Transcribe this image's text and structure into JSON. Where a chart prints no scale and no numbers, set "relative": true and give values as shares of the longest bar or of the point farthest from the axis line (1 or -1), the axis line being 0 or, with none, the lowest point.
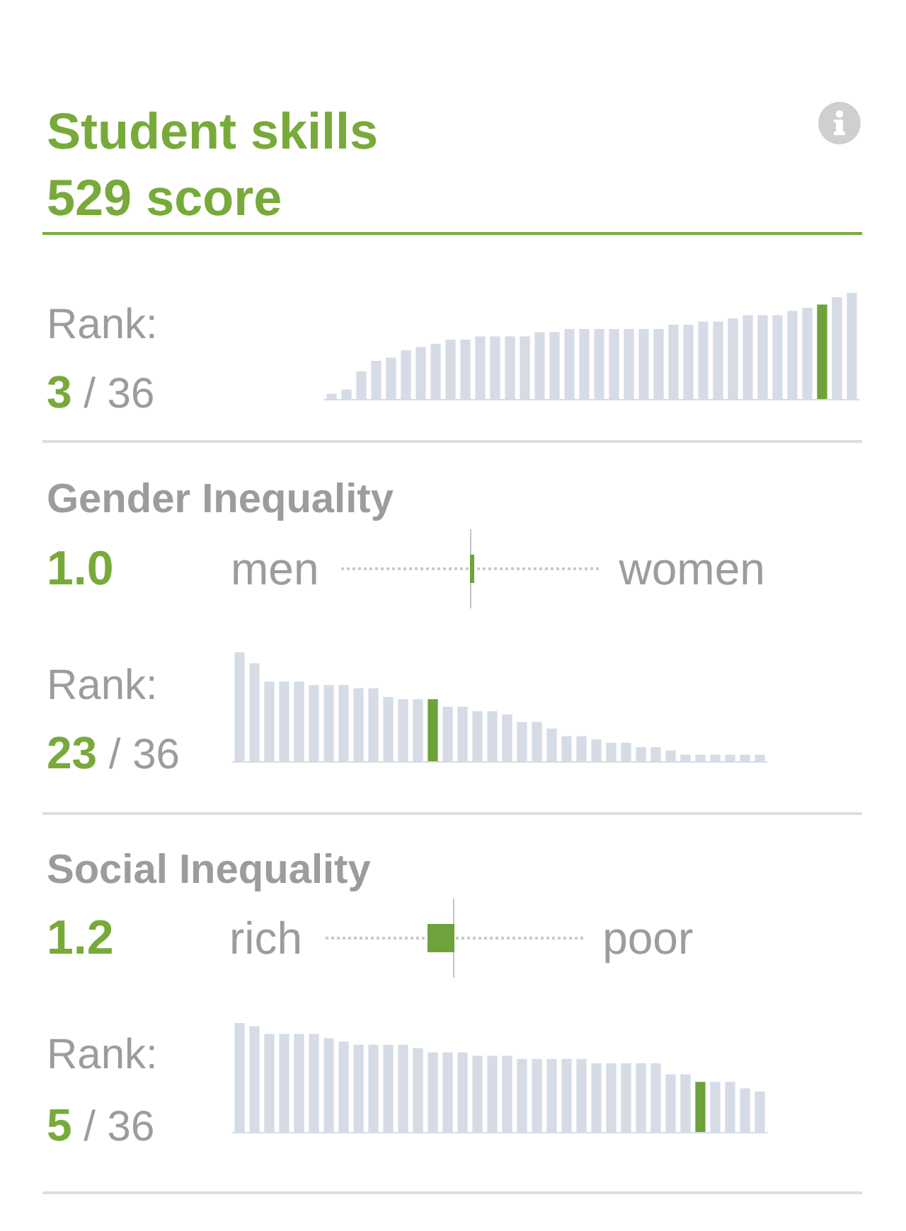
{
  "chart_data": [
    {
      "type": "bar",
      "title": "Student skills",
      "subtitle": "529 score",
      "relative": true,
      "categories": [
        null,
        null,
        null,
        null,
        null,
        null,
        null,
        null,
        null,
        null,
        null,
        null,
        null,
        null,
        null,
        null,
        null,
        null,
        null,
        null,
        null,
        null,
        null,
        null,
        null,
        null,
        null,
        null,
        null,
        null,
        null,
        null,
        null,
        null,
        null,
        null
      ],
      "values": [
        0.05,
        0.09,
        0.26,
        0.36,
        0.39,
        0.46,
        0.49,
        0.52,
        0.56,
        0.56,
        0.59,
        0.59,
        0.59,
        0.59,
        0.63,
        0.63,
        0.66,
        0.66,
        0.66,
        0.66,
        0.66,
        0.66,
        0.66,
        0.7,
        0.7,
        0.73,
        0.73,
        0.76,
        0.79,
        0.79,
        0.79,
        0.83,
        0.86,
        0.89,
        0.96,
        1
      ],
      "colors": [
        "#d6dce5",
        "#d6dce5",
        "#d6dce5",
        "#d6dce5",
        "#d6dce5",
        "#d6dce5",
        "#d6dce5",
        "#d6dce5",
        "#d6dce5",
        "#d6dce5",
        "#d6dce5",
        "#d6dce5",
        "#d6dce5",
        "#d6dce5",
        "#d6dce5",
        "#d6dce5",
        "#d6dce5",
        "#d6dce5",
        "#d6dce5",
        "#d6dce5",
        "#d6dce5",
        "#d6dce5",
        "#d6dce5",
        "#d6dce5",
        "#d6dce5",
        "#d6dce5",
        "#d6dce5",
        "#d6dce5",
        "#d6dce5",
        "#d6dce5",
        "#d6dce5",
        "#d6dce5",
        "#d6dce5",
        "#6ea23a",
        "#d6dce5",
        "#d6dce5"
      ],
      "annotations": [
        "Rank:",
        "3 / 36"
      ]
    },
    {
      "type": "other",
      "title": "Gender Inequality",
      "values": [
        1.0
      ],
      "value_labels": [
        "1.0"
      ],
      "annotations": [
        "men",
        "women"
      ]
    },
    {
      "type": "bar",
      "relative": true,
      "categories": [
        null,
        null,
        null,
        null,
        null,
        null,
        null,
        null,
        null,
        null,
        null,
        null,
        null,
        null,
        null,
        null,
        null,
        null,
        null,
        null,
        null,
        null,
        null,
        null,
        null,
        null,
        null,
        null,
        null,
        null,
        null,
        null,
        null,
        null,
        null,
        null
      ],
      "values": [
        1,
        0.9,
        0.73,
        0.73,
        0.73,
        0.7,
        0.7,
        0.7,
        0.67,
        0.67,
        0.59,
        0.57,
        0.57,
        0.57,
        0.5,
        0.5,
        0.46,
        0.46,
        0.43,
        0.36,
        0.36,
        0.3,
        0.23,
        0.23,
        0.2,
        0.17,
        0.17,
        0.13,
        0.13,
        0.1,
        0.06,
        0.06,
        0.06,
        0.06,
        0.06,
        0.06
      ],
      "colors": [
        "#d6dce5",
        "#d6dce5",
        "#d6dce5",
        "#d6dce5",
        "#d6dce5",
        "#d6dce5",
        "#d6dce5",
        "#d6dce5",
        "#d6dce5",
        "#d6dce5",
        "#d6dce5",
        "#d6dce5",
        "#d6dce5",
        "#6ea23a",
        "#d6dce5",
        "#d6dce5",
        "#d6dce5",
        "#d6dce5",
        "#d6dce5",
        "#d6dce5",
        "#d6dce5",
        "#d6dce5",
        "#d6dce5",
        "#d6dce5",
        "#d6dce5",
        "#d6dce5",
        "#d6dce5",
        "#d6dce5",
        "#d6dce5",
        "#d6dce5",
        "#d6dce5",
        "#d6dce5",
        "#d6dce5",
        "#d6dce5",
        "#d6dce5",
        "#d6dce5"
      ],
      "annotations": [
        "Rank:",
        "23 / 36"
      ]
    },
    {
      "type": "other",
      "title": "Social Inequality",
      "values": [
        1.2
      ],
      "value_labels": [
        "1.2"
      ],
      "annotations": [
        "rich",
        "poor"
      ]
    },
    {
      "type": "bar",
      "relative": true,
      "categories": [
        null,
        null,
        null,
        null,
        null,
        null,
        null,
        null,
        null,
        null,
        null,
        null,
        null,
        null,
        null,
        null,
        null,
        null,
        null,
        null,
        null,
        null,
        null,
        null,
        null,
        null,
        null,
        null,
        null,
        null,
        null,
        null,
        null,
        null,
        null,
        null
      ],
      "values": [
        1,
        0.97,
        0.9,
        0.9,
        0.9,
        0.9,
        0.86,
        0.83,
        0.8,
        0.8,
        0.8,
        0.8,
        0.77,
        0.73,
        0.73,
        0.73,
        0.7,
        0.7,
        0.7,
        0.67,
        0.67,
        0.67,
        0.67,
        0.67,
        0.63,
        0.63,
        0.63,
        0.63,
        0.63,
        0.53,
        0.53,
        0.46,
        0.46,
        0.46,
        0.4,
        0.37
      ],
      "colors": [
        "#d6dce5",
        "#d6dce5",
        "#d6dce5",
        "#d6dce5",
        "#d6dce5",
        "#d6dce5",
        "#d6dce5",
        "#d6dce5",
        "#d6dce5",
        "#d6dce5",
        "#d6dce5",
        "#d6dce5",
        "#d6dce5",
        "#d6dce5",
        "#d6dce5",
        "#d6dce5",
        "#d6dce5",
        "#d6dce5",
        "#d6dce5",
        "#d6dce5",
        "#d6dce5",
        "#d6dce5",
        "#d6dce5",
        "#d6dce5",
        "#d6dce5",
        "#d6dce5",
        "#d6dce5",
        "#d6dce5",
        "#d6dce5",
        "#d6dce5",
        "#d6dce5",
        "#6ea23a",
        "#d6dce5",
        "#d6dce5",
        "#d6dce5",
        "#d6dce5"
      ],
      "annotations": [
        "Rank:",
        "5 / 36"
      ]
    }
  ]
}
